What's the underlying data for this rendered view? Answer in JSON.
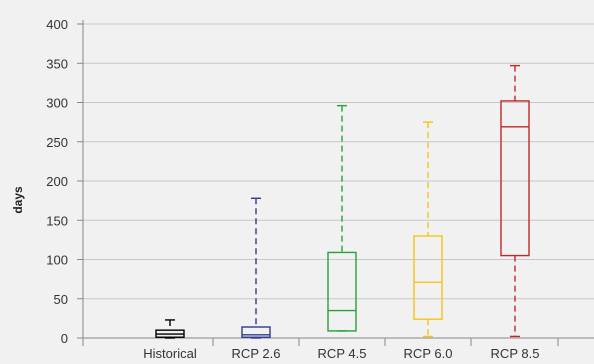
{
  "chart_data": {
    "type": "boxplot",
    "title": "",
    "xlabel": "",
    "ylabel": "days",
    "ylim": [
      0,
      400
    ],
    "yticks": [
      0,
      50,
      100,
      150,
      200,
      250,
      300,
      350,
      400
    ],
    "grid": true,
    "categories": [
      "Historical",
      "RCP 2.6",
      "RCP 4.5",
      "RCP 6.0",
      "RCP 8.5"
    ],
    "colors": [
      "#000000",
      "#2e3b8f",
      "#27a13c",
      "#f5c518",
      "#c1272d"
    ],
    "boxes": [
      {
        "category": "Historical",
        "min": 0,
        "q1": 1,
        "median": 5,
        "q3": 10,
        "max": 23
      },
      {
        "category": "RCP 2.6",
        "min": 0,
        "q1": 1,
        "median": 4,
        "q3": 14,
        "max": 178
      },
      {
        "category": "RCP 4.5",
        "min": 9,
        "q1": 9,
        "median": 35,
        "q3": 109,
        "max": 296
      },
      {
        "category": "RCP 6.0",
        "min": 2,
        "q1": 24,
        "median": 71,
        "q3": 130,
        "max": 275
      },
      {
        "category": "RCP 8.5",
        "min": 2,
        "q1": 105,
        "median": 269,
        "q3": 302,
        "max": 347
      }
    ]
  }
}
